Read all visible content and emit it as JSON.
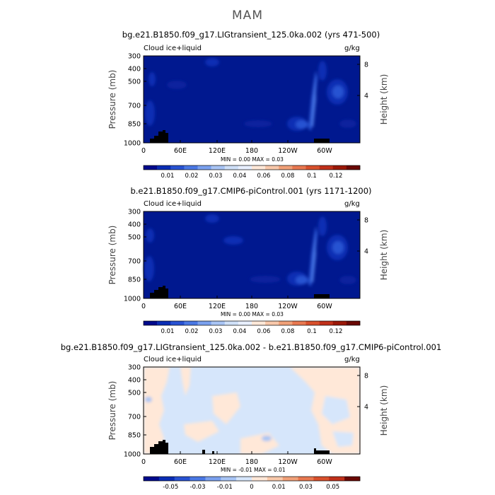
{
  "figure_title": "MAM",
  "panels": [
    {
      "title": "bg.e21.B1850.f09_g17.LIGtransient_125.0ka.002 (yrs 471-500)",
      "left_label": "Cloud ice+liquid",
      "right_label": "g/kg",
      "stats": "MIN =    0.00   MAX =    0.03",
      "colorbar_labels": [
        "0.01",
        "0.02",
        "0.03",
        "0.04",
        "0.06",
        "0.08",
        "0.1",
        "0.12"
      ],
      "colorbar_colors": [
        "#000a8c",
        "#0a2db4",
        "#2852d2",
        "#4a78e4",
        "#7aa0ee",
        "#a8c4f4",
        "#cfe0f8",
        "#e8efff",
        "#ffe8d8",
        "#f8c8aa",
        "#f0a078",
        "#e87850",
        "#d8502c",
        "#c0301a",
        "#9a1808",
        "#6a0804"
      ],
      "background": "#00188f"
    },
    {
      "title": "b.e21.B1850.f09_g17.CMIP6-piControl.001 (yrs 1171-1200)",
      "left_label": "Cloud ice+liquid",
      "right_label": "g/kg",
      "stats": "MIN =    0.00   MAX =    0.03",
      "colorbar_labels": [
        "0.01",
        "0.02",
        "0.03",
        "0.04",
        "0.06",
        "0.08",
        "0.1",
        "0.12"
      ],
      "colorbar_colors": [
        "#000a8c",
        "#0a2db4",
        "#2852d2",
        "#4a78e4",
        "#7aa0ee",
        "#a8c4f4",
        "#cfe0f8",
        "#e8efff",
        "#ffe8d8",
        "#f8c8aa",
        "#f0a078",
        "#e87850",
        "#d8502c",
        "#c0301a",
        "#9a1808",
        "#6a0804"
      ],
      "background": "#00188f"
    },
    {
      "title": "bg.e21.B1850.f09_g17.LIGtransient_125.0ka.002 - b.e21.B1850.f09_g17.CMIP6-piControl.001",
      "left_label": "Cloud ice+liquid",
      "right_label": "g/kg",
      "stats": "MIN =   -0.01   MAX =    0.01",
      "colorbar_labels": [
        "-0.05",
        "-0.03",
        "-0.01",
        "0",
        "0.01",
        "0.03",
        "0.05"
      ],
      "colorbar_colors": [
        "#000a8c",
        "#0a2db4",
        "#2852d2",
        "#4a78e4",
        "#7aa0ee",
        "#a8c4f4",
        "#d6e6fb",
        "#ffe8d8",
        "#f8c8aa",
        "#f0a078",
        "#e87850",
        "#d8502c",
        "#c0301a",
        "#6a0804"
      ],
      "background": "#d6e6fb"
    }
  ],
  "chart_data": {
    "type": "heatmap",
    "x_ticks": [
      "0",
      "60E",
      "120E",
      "180",
      "120W",
      "60W"
    ],
    "y_ticks": [
      "300",
      "400",
      "500",
      "700",
      "850",
      "1000"
    ],
    "y2_ticks": [
      "8",
      "4"
    ],
    "ylabel": "Pressure  (mb)",
    "y2label": "Height  (km)"
  }
}
